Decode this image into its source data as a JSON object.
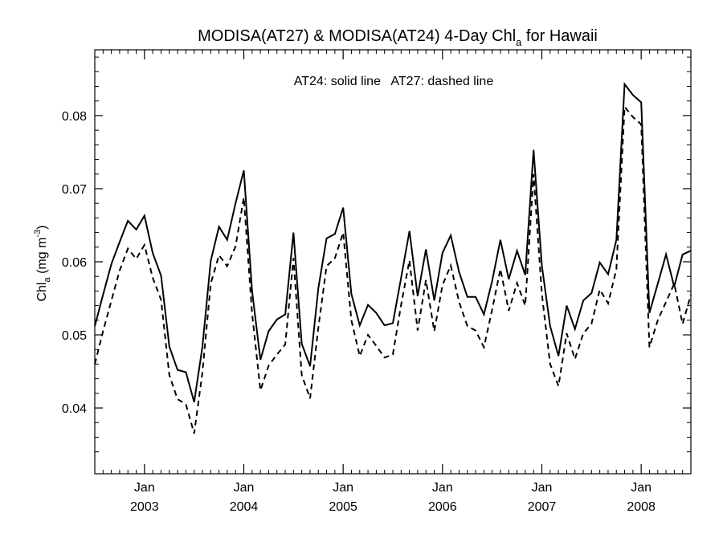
{
  "chart_data": {
    "type": "line",
    "title_main": "MODISA(AT27) & MODISA(AT24) 4-Day Chl",
    "title_sub": "a",
    "title_tail": " for Hawaii",
    "ylabel_main": "Chl",
    "ylabel_sub": "a",
    "ylabel_unit": " (mg m",
    "ylabel_sup": "-3",
    "ylabel_close": ")",
    "annotation": "AT24: solid line   AT27: dashed line",
    "xlim": [
      2002.5,
      2008.5
    ],
    "ylim": [
      0.031,
      0.089
    ],
    "yticks": [
      0.04,
      0.05,
      0.06,
      0.07,
      0.08
    ],
    "ytick_labels": [
      "0.04",
      "0.05",
      "0.06",
      "0.07",
      "0.08"
    ],
    "xticks": [
      {
        "x": 2003.0,
        "month": "Jan",
        "year": "2003"
      },
      {
        "x": 2004.0,
        "month": "Jan",
        "year": "2004"
      },
      {
        "x": 2005.0,
        "month": "Jan",
        "year": "2005"
      },
      {
        "x": 2006.0,
        "month": "Jan",
        "year": "2006"
      },
      {
        "x": 2007.0,
        "month": "Jan",
        "year": "2007"
      },
      {
        "x": 2008.0,
        "month": "Jan",
        "year": "2008"
      }
    ],
    "x": [
      2002.5,
      2002.583,
      2002.667,
      2002.75,
      2002.833,
      2002.917,
      2003.0,
      2003.083,
      2003.167,
      2003.25,
      2003.333,
      2003.417,
      2003.5,
      2003.583,
      2003.667,
      2003.75,
      2003.833,
      2003.917,
      2004.0,
      2004.083,
      2004.167,
      2004.25,
      2004.333,
      2004.417,
      2004.5,
      2004.583,
      2004.667,
      2004.75,
      2004.833,
      2004.917,
      2005.0,
      2005.083,
      2005.167,
      2005.25,
      2005.333,
      2005.417,
      2005.5,
      2005.583,
      2005.667,
      2005.75,
      2005.833,
      2005.917,
      2006.0,
      2006.083,
      2006.167,
      2006.25,
      2006.333,
      2006.417,
      2006.5,
      2006.583,
      2006.667,
      2006.75,
      2006.833,
      2006.917,
      2007.0,
      2007.083,
      2007.167,
      2007.25,
      2007.333,
      2007.417,
      2007.5,
      2007.583,
      2007.667,
      2007.75,
      2007.833,
      2007.917,
      2008.0,
      2008.083,
      2008.167,
      2008.25,
      2008.333,
      2008.417,
      2008.5
    ],
    "series": [
      {
        "name": "AT24",
        "style": "solid",
        "color": "#000000",
        "values": [
          0.0512,
          0.0555,
          0.0597,
          0.0627,
          0.0656,
          0.0644,
          0.0663,
          0.0612,
          0.0581,
          0.0484,
          0.0452,
          0.0449,
          0.0408,
          0.0483,
          0.0601,
          0.0648,
          0.063,
          0.068,
          0.0725,
          0.056,
          0.0466,
          0.0505,
          0.0521,
          0.0528,
          0.064,
          0.0488,
          0.0457,
          0.0564,
          0.0632,
          0.0638,
          0.0674,
          0.0556,
          0.0513,
          0.0541,
          0.053,
          0.0513,
          0.0516,
          0.0578,
          0.0642,
          0.0553,
          0.0617,
          0.0547,
          0.0612,
          0.0636,
          0.0586,
          0.0552,
          0.0552,
          0.0528,
          0.0574,
          0.063,
          0.0576,
          0.0615,
          0.0582,
          0.0753,
          0.0595,
          0.0512,
          0.0471,
          0.054,
          0.0508,
          0.0547,
          0.0557,
          0.0599,
          0.0583,
          0.063,
          0.0843,
          0.0828,
          0.0818,
          0.053,
          0.057,
          0.061,
          0.0566,
          0.061,
          0.0615
        ]
      },
      {
        "name": "AT27",
        "style": "dashed",
        "color": "#000000",
        "values": [
          0.046,
          0.0505,
          0.0547,
          0.0588,
          0.0618,
          0.0604,
          0.0623,
          0.0578,
          0.0548,
          0.0445,
          0.0412,
          0.0405,
          0.0365,
          0.0448,
          0.057,
          0.0609,
          0.0594,
          0.0621,
          0.0688,
          0.0529,
          0.0424,
          0.0458,
          0.0473,
          0.0487,
          0.0605,
          0.0445,
          0.0413,
          0.051,
          0.0594,
          0.0605,
          0.064,
          0.052,
          0.0471,
          0.05,
          0.0485,
          0.0469,
          0.0473,
          0.0541,
          0.0602,
          0.0506,
          0.0575,
          0.0505,
          0.0568,
          0.0595,
          0.0545,
          0.0512,
          0.0506,
          0.0483,
          0.0535,
          0.059,
          0.0533,
          0.0571,
          0.054,
          0.072,
          0.0556,
          0.046,
          0.043,
          0.0502,
          0.0467,
          0.0502,
          0.0515,
          0.0562,
          0.0543,
          0.059,
          0.0812,
          0.0798,
          0.0788,
          0.0483,
          0.052,
          0.0545,
          0.057,
          0.0515,
          0.0555
        ]
      }
    ]
  }
}
